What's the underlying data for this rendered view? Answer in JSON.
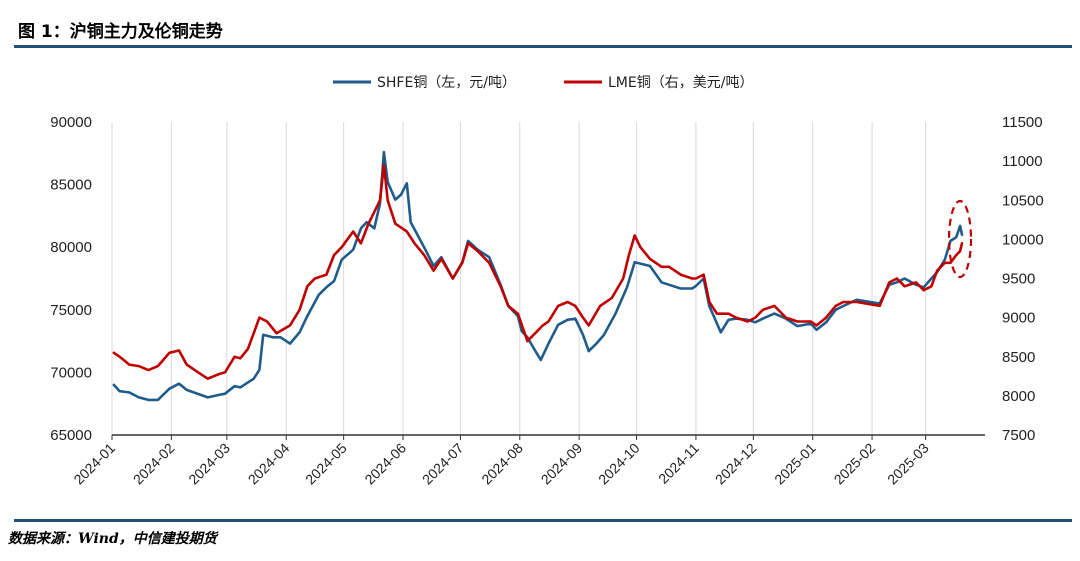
{
  "figure": {
    "title": "图 1：沪铜主力及伦铜走势",
    "source": "数据来源：Wind，中信建投期货"
  },
  "colors": {
    "rule": "#1F4E79",
    "shfe": "#1F5C8B",
    "lme": "#C00000"
  },
  "chart_data": {
    "type": "line",
    "xlabel": "",
    "ylabel": "",
    "x_ticks": [
      "2024-01",
      "2024-02",
      "2024-03",
      "2024-04",
      "2024-05",
      "2024-06",
      "2024-07",
      "2024-08",
      "2024-09",
      "2024-10",
      "2024-11",
      "2024-12",
      "2025-01",
      "2025-02",
      "2025-03"
    ],
    "left_axis": {
      "range": [
        65000,
        90000
      ],
      "ticks": [
        65000,
        70000,
        75000,
        80000,
        85000,
        90000
      ]
    },
    "right_axis": {
      "range": [
        7500,
        11500
      ],
      "ticks": [
        7500,
        8000,
        8500,
        9000,
        9500,
        10000,
        10500,
        11000,
        11500
      ]
    },
    "legend_position": "top-center",
    "annotation": "red dashed ellipse around latest values (2025-03)",
    "series": [
      {
        "name": "SHFE铜（左，元/吨）",
        "axis": "left",
        "points": [
          [
            "2024-01-02",
            69000
          ],
          [
            "2024-01-05",
            68500
          ],
          [
            "2024-01-10",
            68400
          ],
          [
            "2024-01-15",
            68000
          ],
          [
            "2024-01-20",
            67800
          ],
          [
            "2024-01-25",
            67800
          ],
          [
            "2024-01-31",
            68700
          ],
          [
            "2024-02-05",
            69100
          ],
          [
            "2024-02-09",
            68600
          ],
          [
            "2024-02-20",
            68000
          ],
          [
            "2024-02-26",
            68200
          ],
          [
            "2024-02-29",
            68300
          ],
          [
            "2024-03-05",
            68900
          ],
          [
            "2024-03-08",
            68800
          ],
          [
            "2024-03-12",
            69200
          ],
          [
            "2024-03-15",
            69500
          ],
          [
            "2024-03-18",
            70200
          ],
          [
            "2024-03-20",
            73000
          ],
          [
            "2024-03-25",
            72800
          ],
          [
            "2024-03-29",
            72800
          ],
          [
            "2024-04-03",
            72300
          ],
          [
            "2024-04-08",
            73200
          ],
          [
            "2024-04-12",
            74500
          ],
          [
            "2024-04-18",
            76200
          ],
          [
            "2024-04-22",
            76800
          ],
          [
            "2024-04-26",
            77300
          ],
          [
            "2024-04-30",
            79000
          ],
          [
            "2024-05-06",
            79800
          ],
          [
            "2024-05-10",
            81500
          ],
          [
            "2024-05-13",
            82000
          ],
          [
            "2024-05-17",
            81500
          ],
          [
            "2024-05-20",
            83500
          ],
          [
            "2024-05-22",
            87600
          ],
          [
            "2024-05-24",
            85200
          ],
          [
            "2024-05-28",
            83800
          ],
          [
            "2024-05-31",
            84200
          ],
          [
            "2024-06-03",
            85100
          ],
          [
            "2024-06-05",
            82000
          ],
          [
            "2024-06-12",
            80000
          ],
          [
            "2024-06-17",
            78500
          ],
          [
            "2024-06-21",
            79200
          ],
          [
            "2024-06-27",
            77500
          ],
          [
            "2024-07-02",
            78800
          ],
          [
            "2024-07-05",
            80500
          ],
          [
            "2024-07-10",
            79800
          ],
          [
            "2024-07-16",
            79200
          ],
          [
            "2024-07-22",
            77000
          ],
          [
            "2024-07-26",
            75300
          ],
          [
            "2024-07-31",
            74500
          ],
          [
            "2024-08-02",
            73300
          ],
          [
            "2024-08-05",
            72800
          ],
          [
            "2024-08-08",
            72000
          ],
          [
            "2024-08-12",
            71000
          ],
          [
            "2024-08-16",
            72300
          ],
          [
            "2024-08-21",
            73800
          ],
          [
            "2024-08-26",
            74200
          ],
          [
            "2024-08-30",
            74300
          ],
          [
            "2024-09-03",
            73000
          ],
          [
            "2024-09-06",
            71700
          ],
          [
            "2024-09-10",
            72300
          ],
          [
            "2024-09-14",
            73000
          ],
          [
            "2024-09-20",
            74700
          ],
          [
            "2024-09-26",
            76800
          ],
          [
            "2024-09-30",
            78800
          ],
          [
            "2024-10-08",
            78500
          ],
          [
            "2024-10-14",
            77200
          ],
          [
            "2024-10-18",
            77000
          ],
          [
            "2024-10-24",
            76700
          ],
          [
            "2024-10-30",
            76700
          ],
          [
            "2024-11-01",
            76900
          ],
          [
            "2024-11-05",
            77500
          ],
          [
            "2024-11-08",
            75300
          ],
          [
            "2024-11-12",
            73900
          ],
          [
            "2024-11-14",
            73200
          ],
          [
            "2024-11-18",
            74200
          ],
          [
            "2024-11-22",
            74300
          ],
          [
            "2024-11-28",
            74200
          ],
          [
            "2024-12-02",
            74000
          ],
          [
            "2024-12-06",
            74300
          ],
          [
            "2024-12-12",
            74700
          ],
          [
            "2024-12-18",
            74300
          ],
          [
            "2024-12-24",
            73700
          ],
          [
            "2024-12-31",
            73900
          ],
          [
            "2025-01-03",
            73400
          ],
          [
            "2025-01-08",
            74000
          ],
          [
            "2025-01-13",
            75000
          ],
          [
            "2025-01-17",
            75300
          ],
          [
            "2025-01-24",
            75800
          ],
          [
            "2025-02-05",
            75500
          ],
          [
            "2025-02-10",
            77000
          ],
          [
            "2025-02-14",
            77200
          ],
          [
            "2025-02-18",
            77500
          ],
          [
            "2025-02-24",
            77000
          ],
          [
            "2025-02-28",
            76800
          ],
          [
            "2025-03-04",
            77500
          ],
          [
            "2025-03-07",
            78000
          ],
          [
            "2025-03-11",
            79000
          ],
          [
            "2025-03-14",
            80500
          ],
          [
            "2025-03-17",
            80800
          ],
          [
            "2025-03-19",
            81700
          ],
          [
            "2025-03-20",
            81000
          ]
        ]
      },
      {
        "name": "LME铜（右，美元/吨）",
        "axis": "right",
        "points": [
          [
            "2024-01-02",
            8550
          ],
          [
            "2024-01-05",
            8500
          ],
          [
            "2024-01-10",
            8400
          ],
          [
            "2024-01-15",
            8380
          ],
          [
            "2024-01-20",
            8330
          ],
          [
            "2024-01-25",
            8380
          ],
          [
            "2024-01-31",
            8550
          ],
          [
            "2024-02-05",
            8580
          ],
          [
            "2024-02-09",
            8400
          ],
          [
            "2024-02-15",
            8300
          ],
          [
            "2024-02-20",
            8220
          ],
          [
            "2024-02-26",
            8280
          ],
          [
            "2024-02-29",
            8300
          ],
          [
            "2024-03-05",
            8500
          ],
          [
            "2024-03-08",
            8480
          ],
          [
            "2024-03-12",
            8600
          ],
          [
            "2024-03-15",
            8800
          ],
          [
            "2024-03-18",
            9000
          ],
          [
            "2024-03-22",
            8950
          ],
          [
            "2024-03-27",
            8800
          ],
          [
            "2024-04-03",
            8900
          ],
          [
            "2024-04-08",
            9100
          ],
          [
            "2024-04-12",
            9400
          ],
          [
            "2024-04-16",
            9500
          ],
          [
            "2024-04-22",
            9550
          ],
          [
            "2024-04-26",
            9800
          ],
          [
            "2024-04-30",
            9900
          ],
          [
            "2024-05-06",
            10100
          ],
          [
            "2024-05-10",
            9950
          ],
          [
            "2024-05-14",
            10200
          ],
          [
            "2024-05-20",
            10500
          ],
          [
            "2024-05-22",
            10950
          ],
          [
            "2024-05-24",
            10500
          ],
          [
            "2024-05-28",
            10200
          ],
          [
            "2024-05-31",
            10150
          ],
          [
            "2024-06-03",
            10100
          ],
          [
            "2024-06-07",
            9950
          ],
          [
            "2024-06-12",
            9800
          ],
          [
            "2024-06-17",
            9600
          ],
          [
            "2024-06-21",
            9750
          ],
          [
            "2024-06-27",
            9500
          ],
          [
            "2024-07-02",
            9700
          ],
          [
            "2024-07-05",
            9950
          ],
          [
            "2024-07-10",
            9850
          ],
          [
            "2024-07-16",
            9700
          ],
          [
            "2024-07-22",
            9400
          ],
          [
            "2024-07-26",
            9150
          ],
          [
            "2024-07-31",
            9050
          ],
          [
            "2024-08-05",
            8700
          ],
          [
            "2024-08-09",
            8800
          ],
          [
            "2024-08-13",
            8900
          ],
          [
            "2024-08-16",
            8950
          ],
          [
            "2024-08-21",
            9150
          ],
          [
            "2024-08-26",
            9200
          ],
          [
            "2024-08-30",
            9150
          ],
          [
            "2024-09-03",
            9000
          ],
          [
            "2024-09-06",
            8900
          ],
          [
            "2024-09-12",
            9150
          ],
          [
            "2024-09-18",
            9250
          ],
          [
            "2024-09-24",
            9500
          ],
          [
            "2024-09-27",
            9800
          ],
          [
            "2024-09-30",
            10050
          ],
          [
            "2024-10-03",
            9900
          ],
          [
            "2024-10-08",
            9750
          ],
          [
            "2024-10-14",
            9650
          ],
          [
            "2024-10-18",
            9650
          ],
          [
            "2024-10-24",
            9550
          ],
          [
            "2024-10-30",
            9500
          ],
          [
            "2024-11-01",
            9500
          ],
          [
            "2024-11-05",
            9550
          ],
          [
            "2024-11-08",
            9200
          ],
          [
            "2024-11-12",
            9050
          ],
          [
            "2024-11-18",
            9050
          ],
          [
            "2024-11-22",
            9000
          ],
          [
            "2024-11-28",
            8950
          ],
          [
            "2024-12-02",
            9000
          ],
          [
            "2024-12-06",
            9100
          ],
          [
            "2024-12-12",
            9150
          ],
          [
            "2024-12-18",
            9000
          ],
          [
            "2024-12-24",
            8950
          ],
          [
            "2024-12-31",
            8950
          ],
          [
            "2025-01-03",
            8900
          ],
          [
            "2025-01-08",
            9000
          ],
          [
            "2025-01-13",
            9150
          ],
          [
            "2025-01-17",
            9200
          ],
          [
            "2025-01-24",
            9200
          ],
          [
            "2025-02-05",
            9150
          ],
          [
            "2025-02-10",
            9450
          ],
          [
            "2025-02-14",
            9500
          ],
          [
            "2025-02-18",
            9400
          ],
          [
            "2025-02-24",
            9450
          ],
          [
            "2025-02-28",
            9350
          ],
          [
            "2025-03-04",
            9400
          ],
          [
            "2025-03-07",
            9600
          ],
          [
            "2025-03-11",
            9700
          ],
          [
            "2025-03-14",
            9700
          ],
          [
            "2025-03-17",
            9800
          ],
          [
            "2025-03-19",
            9850
          ],
          [
            "2025-03-20",
            9950
          ]
        ]
      }
    ]
  }
}
